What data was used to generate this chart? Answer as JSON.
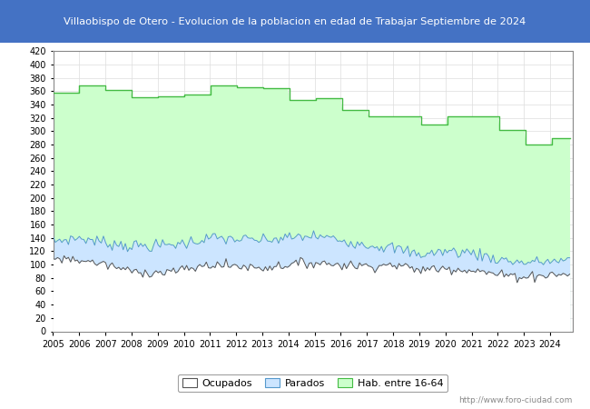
{
  "title": "Villaobispo de Otero - Evolucion de la poblacion en edad de Trabajar Septiembre de 2024",
  "title_bg": "#4472c4",
  "title_color": "#ffffff",
  "ylim": [
    0,
    420
  ],
  "yticks": [
    0,
    20,
    40,
    60,
    80,
    100,
    120,
    140,
    160,
    180,
    200,
    220,
    240,
    260,
    280,
    300,
    320,
    340,
    360,
    380,
    400,
    420
  ],
  "years": [
    2005,
    2006,
    2007,
    2008,
    2009,
    2010,
    2011,
    2012,
    2013,
    2014,
    2015,
    2016,
    2017,
    2018,
    2019,
    2020,
    2021,
    2022,
    2023,
    2024
  ],
  "hab_values": [
    358,
    368,
    362,
    351,
    352,
    355,
    368,
    366,
    364,
    347,
    350,
    332,
    322,
    322,
    310,
    322,
    322,
    302,
    280,
    290
  ],
  "parados_values": [
    135,
    140,
    133,
    128,
    128,
    132,
    140,
    138,
    136,
    140,
    143,
    137,
    130,
    125,
    115,
    120,
    118,
    108,
    103,
    105
  ],
  "ocupados_values": [
    110,
    107,
    100,
    90,
    88,
    92,
    100,
    98,
    95,
    100,
    103,
    100,
    98,
    100,
    92,
    95,
    92,
    85,
    82,
    85
  ],
  "hab_color": "#ccffcc",
  "hab_line_color": "#44bb44",
  "parados_color": "#cce5ff",
  "parados_line_color": "#5599cc",
  "ocupados_color": "#ffffff",
  "ocupados_line_color": "#555555",
  "grid_color": "#dddddd",
  "watermark": "http://www.foro-ciudad.com",
  "legend_labels": [
    "Ocupados",
    "Parados",
    "Hab. entre 16-64"
  ],
  "legend_facecolors": [
    "#ffffff",
    "#cce5ff",
    "#ccffcc"
  ],
  "legend_edgecolors": [
    "#555555",
    "#5599cc",
    "#44bb44"
  ]
}
